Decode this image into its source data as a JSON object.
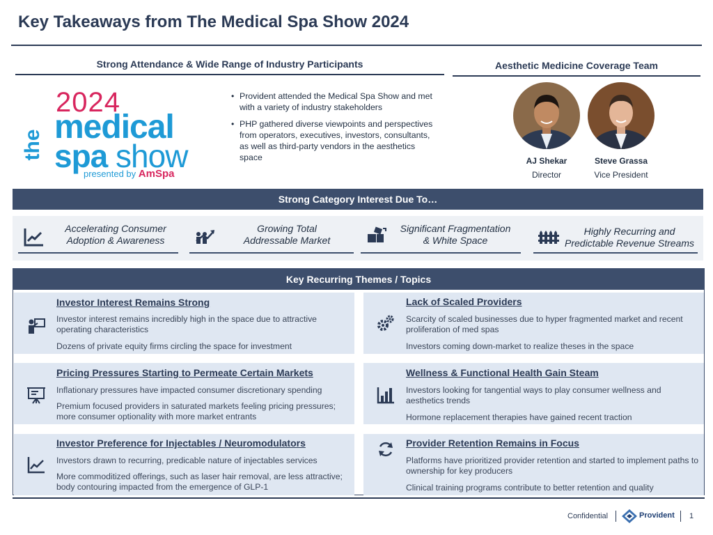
{
  "page_title": "Key Takeaways from The Medical Spa Show 2024",
  "attendance": {
    "heading": "Strong Attendance & Wide Range of Industry Participants",
    "logo": {
      "year": "2024",
      "the": "the",
      "medical": "medical",
      "spa": "spa",
      "show": "show",
      "presented_by": "presented by",
      "brand": "AmSpa"
    },
    "bullets": [
      "Provident attended the Medical Spa Show and met with a variety of industry stakeholders",
      "PHP gathered diverse viewpoints and perspectives from operators, executives, investors, consultants, as well as third-party vendors in the aesthetics space"
    ]
  },
  "team": {
    "heading": "Aesthetic Medicine Coverage Team",
    "members": [
      {
        "name": "AJ Shekar",
        "role": "Director"
      },
      {
        "name": "Steve Grassa",
        "role": "Vice President"
      }
    ]
  },
  "category_interest": {
    "heading": "Strong Category Interest Due To…",
    "items": [
      {
        "line1": "Accelerating Consumer",
        "line2": "Adoption & Awareness",
        "icon": "trend-chart-icon"
      },
      {
        "line1": "Growing Total",
        "line2": "Addressable Market",
        "icon": "growth-people-icon"
      },
      {
        "line1": "Significant Fragmentation",
        "line2": "& White Space",
        "icon": "puzzle-pieces-icon"
      },
      {
        "line1": "Highly Recurring and",
        "line2": "Predictable Revenue Streams",
        "icon": "fence-icon"
      }
    ]
  },
  "themes": {
    "heading": "Key Recurring Themes / Topics",
    "items": [
      {
        "title": "Investor Interest Remains Strong",
        "icon": "investor-presentation-icon",
        "p1": "Investor interest remains incredibly high in the space due to attractive operating characteristics",
        "p2": "Dozens of private equity firms circling the space for investment"
      },
      {
        "title": "Lack of Scaled Providers",
        "icon": "gears-icon",
        "p1": "Scarcity of scaled businesses due to hyper fragmented market and recent proliferation of med spas",
        "p2": "Investors coming down-market to realize theses in the space"
      },
      {
        "title": "Pricing Pressures Starting to Permeate Certain Markets",
        "icon": "presentation-board-icon",
        "p1": "Inflationary pressures have impacted consumer discretionary spending",
        "p2": "Premium focused providers in saturated markets feeling pricing pressures; more consumer optionality with more market entrants"
      },
      {
        "title": "Wellness & Functional Health Gain Steam",
        "icon": "bar-chart-icon",
        "p1": "Investors looking for tangential ways to play consumer wellness and aesthetics trends",
        "p2": "Hormone replacement therapies have gained recent traction"
      },
      {
        "title": "Investor Preference for Injectables / Neuromodulators",
        "icon": "line-chart-icon",
        "p1": "Investors drawn to recurring, predicable nature of injectables services",
        "p2": "More commoditized offerings, such as laser hair removal, are less attractive; body contouring impacted from the emergence of GLP-1"
      },
      {
        "title": "Provider Retention Remains in Focus",
        "icon": "refresh-icon",
        "p1": "Platforms have prioritized provider retention and started to implement paths to ownership for key producers",
        "p2": "Clinical training programs contribute to better retention and quality"
      }
    ]
  },
  "footer": {
    "confidential": "Confidential",
    "brand": "Provident",
    "page": "1"
  }
}
